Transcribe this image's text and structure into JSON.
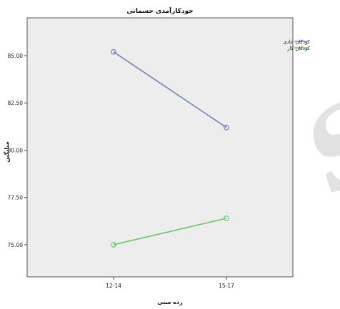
{
  "chart_data": {
    "type": "line",
    "title": "خودکارآمدی جسمانی",
    "xlabel": "رده سنی",
    "ylabel": "میانگین",
    "categories": [
      "12-14",
      "15-17"
    ],
    "series": [
      {
        "name": "کودکان عادی",
        "values": [
          85.2,
          81.2
        ],
        "color": "#7a7fb8"
      },
      {
        "name": "کودکان کار",
        "values": [
          75.0,
          76.4
        ],
        "color": "#6cc46c"
      }
    ],
    "ylim": [
      73.3,
      87.0
    ],
    "yticks": [
      "75.00",
      "77.50",
      "80.00",
      "82.50",
      "85.00"
    ],
    "grid": false,
    "legend": "right",
    "plot_background": "#ededed",
    "watermark": "of S"
  }
}
